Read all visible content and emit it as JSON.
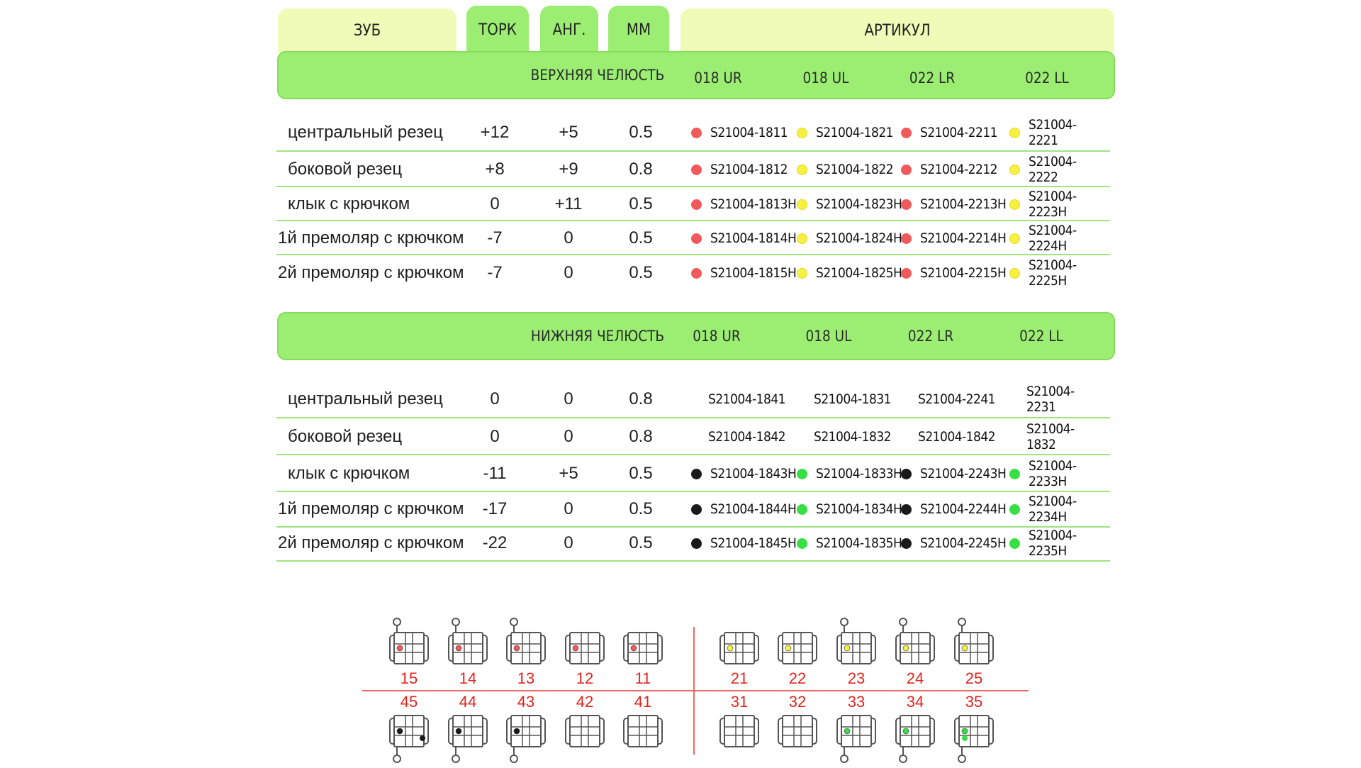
{
  "header": {
    "tooth": "ЗУБ",
    "torque": "ТОРК",
    "angle": "АНГ.",
    "mm": "ММ",
    "article": "АРТИКУЛ"
  },
  "colors": {
    "red": "#f05a5a",
    "yellow": "#f8f040",
    "black": "#1a1a1a",
    "green": "#36e044",
    "band": "#9bee72",
    "pale": "#f1fbb8",
    "tooth_number": "#e0251e"
  },
  "upper": {
    "title": "ВЕРХНЯЯ ЧЕЛЮСТЬ",
    "columns": [
      "018 UR",
      "018 UL",
      "022 LR",
      "022 LL"
    ],
    "rows": [
      {
        "tooth": "центральный резец",
        "torque": "+12",
        "angle": "+5",
        "mm": "0.5",
        "articles": [
          {
            "code": "S21004-1811",
            "dot": "red"
          },
          {
            "code": "S21004-1821",
            "dot": "yellow"
          },
          {
            "code": "S21004-2211",
            "dot": "red"
          },
          {
            "code": "S21004-2221",
            "dot": "yellow"
          }
        ]
      },
      {
        "tooth": "боковой резец",
        "torque": "+8",
        "angle": "+9",
        "mm": "0.8",
        "articles": [
          {
            "code": "S21004-1812",
            "dot": "red"
          },
          {
            "code": "S21004-1822",
            "dot": "yellow"
          },
          {
            "code": "S21004-2212",
            "dot": "red"
          },
          {
            "code": "S21004-2222",
            "dot": "yellow"
          }
        ]
      },
      {
        "tooth": "клык с крючком",
        "torque": "0",
        "angle": "+11",
        "mm": "0.5",
        "articles": [
          {
            "code": "S21004-1813H",
            "dot": "red"
          },
          {
            "code": "S21004-1823H",
            "dot": "yellow"
          },
          {
            "code": "S21004-2213H",
            "dot": "red"
          },
          {
            "code": "S21004-2223H",
            "dot": "yellow"
          }
        ]
      },
      {
        "tooth": "1й премоляр с крючком",
        "torque": "-7",
        "angle": "0",
        "mm": "0.5",
        "articles": [
          {
            "code": "S21004-1814H",
            "dot": "red"
          },
          {
            "code": "S21004-1824H",
            "dot": "yellow"
          },
          {
            "code": "S21004-2214H",
            "dot": "red"
          },
          {
            "code": "S21004-2224H",
            "dot": "yellow"
          }
        ]
      },
      {
        "tooth": "2й премоляр с крючком",
        "torque": "-7",
        "angle": "0",
        "mm": "0.5",
        "articles": [
          {
            "code": "S21004-1815H",
            "dot": "red"
          },
          {
            "code": "S21004-1825H",
            "dot": "yellow"
          },
          {
            "code": "S21004-2215H",
            "dot": "red"
          },
          {
            "code": "S21004-2225H",
            "dot": "yellow"
          }
        ]
      }
    ]
  },
  "lower": {
    "title": "НИЖНЯЯ ЧЕЛЮСТЬ",
    "columns": [
      "018 UR",
      "018 UL",
      "022 LR",
      "022 LL"
    ],
    "rows": [
      {
        "tooth": "центральный резец",
        "torque": "0",
        "angle": "0",
        "mm": "0.8",
        "articles": [
          {
            "code": "S21004-1841",
            "dot": ""
          },
          {
            "code": "S21004-1831",
            "dot": ""
          },
          {
            "code": "S21004-2241",
            "dot": ""
          },
          {
            "code": "S21004-2231",
            "dot": ""
          }
        ]
      },
      {
        "tooth": "боковой резец",
        "torque": "0",
        "angle": "0",
        "mm": "0.8",
        "articles": [
          {
            "code": "S21004-1842",
            "dot": ""
          },
          {
            "code": "S21004-1832",
            "dot": ""
          },
          {
            "code": "S21004-1842",
            "dot": ""
          },
          {
            "code": "S21004-1832",
            "dot": ""
          }
        ]
      },
      {
        "tooth": "клык с крючком",
        "torque": "-11",
        "angle": "+5",
        "mm": "0.5",
        "articles": [
          {
            "code": "S21004-1843H",
            "dot": "black"
          },
          {
            "code": "S21004-1833H",
            "dot": "green"
          },
          {
            "code": "S21004-2243H",
            "dot": "black"
          },
          {
            "code": "S21004-2233H",
            "dot": "green"
          }
        ]
      },
      {
        "tooth": "1й премоляр с крючком",
        "torque": "-17",
        "angle": "0",
        "mm": "0.5",
        "articles": [
          {
            "code": "S21004-1844H",
            "dot": "black"
          },
          {
            "code": "S21004-1834H",
            "dot": "green"
          },
          {
            "code": "S21004-2244H",
            "dot": "black"
          },
          {
            "code": "S21004-2234H",
            "dot": "green"
          }
        ]
      },
      {
        "tooth": "2й премоляр с крючком",
        "torque": "-22",
        "angle": "0",
        "mm": "0.5",
        "articles": [
          {
            "code": "S21004-1845H",
            "dot": "black"
          },
          {
            "code": "S21004-1835H",
            "dot": "green"
          },
          {
            "code": "S21004-2245H",
            "dot": "black"
          },
          {
            "code": "S21004-2235H",
            "dot": "green"
          }
        ]
      }
    ]
  },
  "diagram": {
    "upper": [
      {
        "num": "15",
        "dot": "red",
        "hook": true
      },
      {
        "num": "14",
        "dot": "red",
        "hook": true
      },
      {
        "num": "13",
        "dot": "red",
        "hook": true
      },
      {
        "num": "12",
        "dot": "red",
        "hook": false
      },
      {
        "num": "11",
        "dot": "red",
        "hook": false
      },
      {
        "num": "21",
        "dot": "yellow",
        "hook": false
      },
      {
        "num": "22",
        "dot": "yellow",
        "hook": false
      },
      {
        "num": "23",
        "dot": "yellow",
        "hook": true
      },
      {
        "num": "24",
        "dot": "yellow",
        "hook": true
      },
      {
        "num": "25",
        "dot": "yellow",
        "hook": true
      }
    ],
    "lower": [
      {
        "num": "45",
        "dot": "black",
        "hook": true
      },
      {
        "num": "44",
        "dot": "black",
        "hook": true
      },
      {
        "num": "43",
        "dot": "black",
        "hook": true
      },
      {
        "num": "42",
        "dot": "",
        "hook": false
      },
      {
        "num": "41",
        "dot": "",
        "hook": false
      },
      {
        "num": "31",
        "dot": "",
        "hook": false
      },
      {
        "num": "32",
        "dot": "",
        "hook": false
      },
      {
        "num": "33",
        "dot": "green",
        "hook": true
      },
      {
        "num": "34",
        "dot": "green",
        "hook": true
      },
      {
        "num": "35",
        "dot": "green",
        "hook": true
      }
    ]
  }
}
